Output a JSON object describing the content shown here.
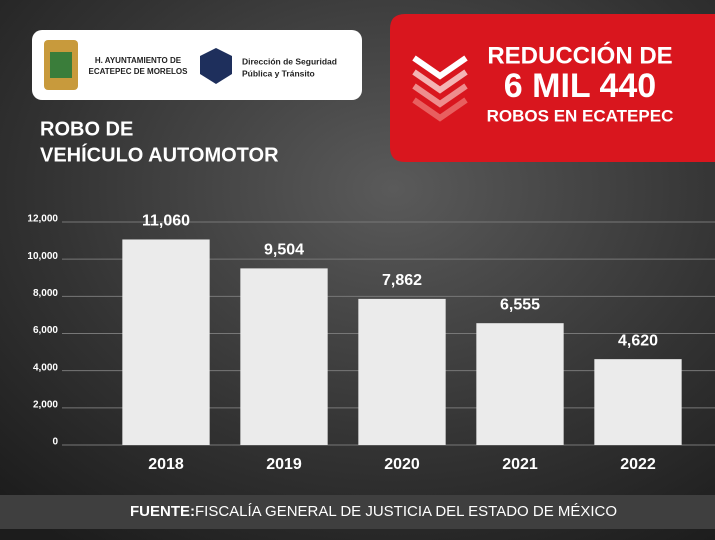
{
  "header": {
    "municipality": [
      "H. AYUNTAMIENTO DE",
      "ECATEPEC DE MORELOS"
    ],
    "department": [
      "Dirección de Seguridad",
      "Pública y Tránsito"
    ]
  },
  "banner": [
    "REDUCCIÓN DE",
    "6 MIL 440",
    "ROBOS EN ECATEPEC"
  ],
  "source": {
    "label": "FUENTE:",
    "text": "FISCALÍA GENERAL DE JUSTICIA DEL ESTADO DE MÉXICO"
  },
  "chart_data": {
    "type": "bar",
    "title": [
      "ROBO DE",
      "VEHÍCULO AUTOMOTOR"
    ],
    "categories": [
      "2018",
      "2019",
      "2020",
      "2021",
      "2022"
    ],
    "values": [
      11060,
      9504,
      7862,
      6555,
      4620
    ],
    "value_labels": [
      "11,060",
      "9,504",
      "7,862",
      "6,555",
      "4,620"
    ],
    "color": "#ebebeb",
    "ylim": [
      0,
      12000
    ],
    "yticks": [
      0,
      {
        "value": 2000,
        "label": "2,000"
      },
      {
        "value": 4000,
        "label": "4,000"
      },
      {
        "value": 6000,
        "label": "6,000"
      },
      {
        "value": 8000,
        "label": "8,000"
      },
      {
        "value": 10000,
        "label": "10,000"
      },
      {
        "value": 12000,
        "label": "12,000"
      }
    ],
    "grid": true
  }
}
